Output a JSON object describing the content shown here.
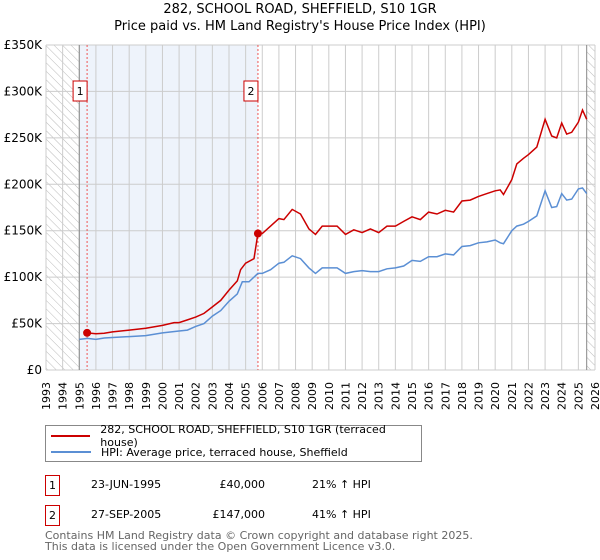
{
  "chart_data": {
    "type": "line",
    "title": "282, SCHOOL ROAD, SHEFFIELD, S10 1GR",
    "subtitle": "Price paid vs. HM Land Registry's House Price Index (HPI)",
    "xlim": [
      1993,
      2026
    ],
    "ylim": [
      0,
      350000
    ],
    "x_ticks": [
      "1993",
      "1994",
      "1995",
      "1996",
      "1997",
      "1998",
      "1999",
      "2000",
      "2001",
      "2002",
      "2003",
      "2004",
      "2005",
      "2006",
      "2007",
      "2008",
      "2009",
      "2010",
      "2011",
      "2012",
      "2013",
      "2014",
      "2015",
      "2016",
      "2017",
      "2018",
      "2019",
      "2020",
      "2021",
      "2022",
      "2023",
      "2024",
      "2025",
      "2026"
    ],
    "y_ticks": [
      {
        "v": 0,
        "label": "£0"
      },
      {
        "v": 50000,
        "label": "£50K"
      },
      {
        "v": 100000,
        "label": "£100K"
      },
      {
        "v": 150000,
        "label": "£150K"
      },
      {
        "v": 200000,
        "label": "£200K"
      },
      {
        "v": 250000,
        "label": "£250K"
      },
      {
        "v": 300000,
        "label": "£300K"
      },
      {
        "v": 350000,
        "label": "£350K"
      }
    ],
    "grid": true,
    "hatched_ranges": [
      [
        1993,
        1995
      ],
      [
        2025.5,
        2026
      ]
    ],
    "shaded_range": [
      1995,
      2005.74
    ],
    "series": [
      {
        "name": "282, SCHOOL ROAD, SHEFFIELD, S10 1GR (terraced house)",
        "color": "#cc0000",
        "x": [
          1995.47,
          1996,
          1996.5,
          1997,
          1998,
          1999,
          2000,
          2000.7,
          2001,
          2001.5,
          2002,
          2002.5,
          2003,
          2003.5,
          2004,
          2004.5,
          2004.7,
          2005,
          2005.5,
          2005.74,
          2006,
          2006.5,
          2007,
          2007.3,
          2007.8,
          2008.3,
          2008.8,
          2009.2,
          2009.6,
          2010,
          2010.5,
          2011,
          2011.5,
          2012,
          2012.5,
          2013,
          2013.5,
          2014,
          2014.5,
          2015,
          2015.5,
          2016,
          2016.5,
          2017,
          2017.5,
          2018,
          2018.5,
          2019,
          2019.5,
          2020,
          2020.3,
          2020.5,
          2021,
          2021.3,
          2021.7,
          2022,
          2022.5,
          2023,
          2023.4,
          2023.7,
          2024,
          2024.3,
          2024.6,
          2025,
          2025.25,
          2025.5
        ],
        "y": [
          40000,
          39000,
          39500,
          41000,
          43000,
          45000,
          48000,
          51000,
          51000,
          54000,
          57000,
          61000,
          68000,
          75000,
          86000,
          96000,
          108000,
          115000,
          120000,
          147000,
          147000,
          155000,
          163000,
          162000,
          173000,
          168000,
          152000,
          146000,
          155000,
          155000,
          155000,
          146000,
          151000,
          148000,
          152000,
          148000,
          155000,
          155000,
          160000,
          165000,
          162000,
          170000,
          168000,
          172000,
          170000,
          182000,
          183000,
          187000,
          190000,
          193000,
          194000,
          189000,
          205000,
          222000,
          228000,
          232000,
          240000,
          270000,
          252000,
          250000,
          266000,
          254000,
          256000,
          267000,
          280000,
          270000
        ]
      },
      {
        "name": "HPI: Average price, terraced house, Sheffield",
        "color": "#5b8fd4",
        "x": [
          1995,
          1995.5,
          1996,
          1996.5,
          1997,
          1998,
          1999,
          2000,
          2001,
          2001.5,
          2002,
          2002.5,
          2003,
          2003.5,
          2004,
          2004.5,
          2004.8,
          2005.2,
          2005.74,
          2006,
          2006.5,
          2007,
          2007.3,
          2007.8,
          2008.3,
          2008.8,
          2009.2,
          2009.6,
          2010,
          2010.5,
          2011,
          2011.5,
          2012,
          2012.5,
          2013,
          2013.5,
          2014,
          2014.5,
          2015,
          2015.5,
          2016,
          2016.5,
          2017,
          2017.5,
          2018,
          2018.5,
          2019,
          2019.5,
          2020,
          2020.3,
          2020.5,
          2021,
          2021.3,
          2021.7,
          2022,
          2022.5,
          2023,
          2023.4,
          2023.7,
          2024,
          2024.3,
          2024.6,
          2025,
          2025.25,
          2025.5
        ],
        "y": [
          33000,
          34000,
          33000,
          34500,
          35000,
          36000,
          37000,
          40000,
          42000,
          43000,
          47000,
          50000,
          58000,
          64000,
          74000,
          82000,
          95000,
          95000,
          104000,
          104000,
          108000,
          115000,
          116000,
          123000,
          120000,
          110000,
          104000,
          110000,
          110000,
          110000,
          104000,
          106000,
          107000,
          106000,
          106000,
          109000,
          110000,
          112000,
          118000,
          117000,
          122000,
          122000,
          125000,
          124000,
          133000,
          134000,
          137000,
          138000,
          140000,
          137000,
          136000,
          150000,
          155000,
          157000,
          160000,
          166000,
          193000,
          175000,
          176000,
          190000,
          183000,
          184000,
          195000,
          196000,
          190000
        ]
      }
    ],
    "markers": [
      {
        "label": "1",
        "x": 1995.47,
        "y": 40000
      },
      {
        "label": "2",
        "x": 2005.74,
        "y": 147000
      }
    ]
  },
  "legend": {
    "items": [
      "282, SCHOOL ROAD, SHEFFIELD, S10 1GR (terraced house)",
      "HPI: Average price, terraced house, Sheffield"
    ]
  },
  "transactions": [
    {
      "num": "1",
      "date": "23-JUN-1995",
      "price": "£40,000",
      "hpi": "21% ↑ HPI"
    },
    {
      "num": "2",
      "date": "27-SEP-2005",
      "price": "£147,000",
      "hpi": "41% ↑ HPI"
    }
  ],
  "footer": {
    "line1": "Contains HM Land Registry data © Crown copyright and database right 2025.",
    "line2": "This data is licensed under the Open Government Licence v3.0."
  }
}
